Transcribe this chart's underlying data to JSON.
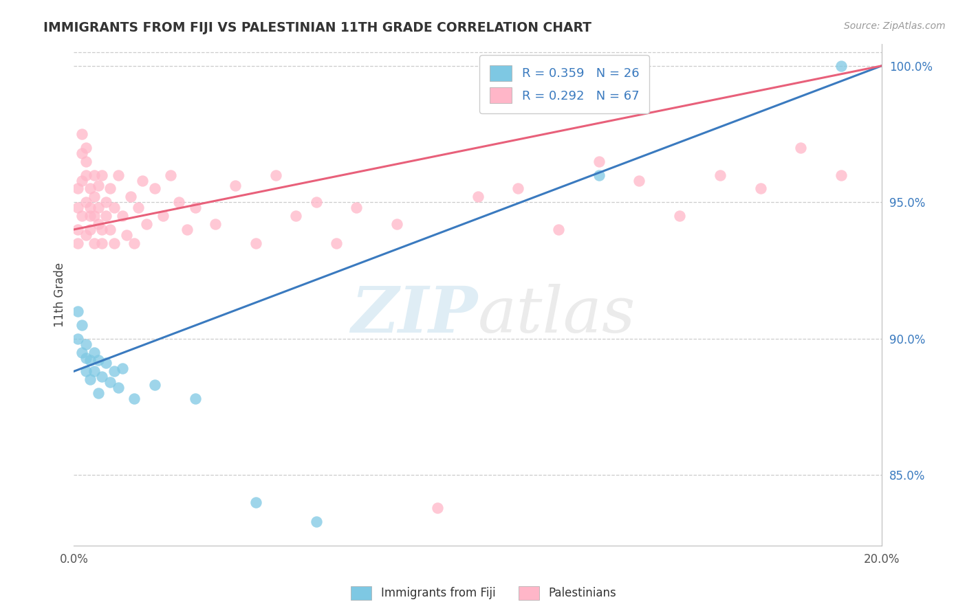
{
  "title": "IMMIGRANTS FROM FIJI VS PALESTINIAN 11TH GRADE CORRELATION CHART",
  "source": "Source: ZipAtlas.com",
  "ylabel": "11th Grade",
  "legend_label1": "Immigrants from Fiji",
  "legend_label2": "Palestinians",
  "r1": 0.359,
  "n1": 26,
  "r2": 0.292,
  "n2": 67,
  "color1": "#7ec8e3",
  "color2": "#ffb6c8",
  "line_color1": "#3a7abf",
  "line_color2": "#e8607a",
  "xmin": 0.0,
  "xmax": 0.2,
  "ymin": 0.824,
  "ymax": 1.008,
  "yticks_right": [
    0.85,
    0.9,
    0.95,
    1.0
  ],
  "ytick_labels_right": [
    "85.0%",
    "90.0%",
    "95.0%",
    "100.0%"
  ],
  "xticks": [
    0.0,
    0.05,
    0.1,
    0.15,
    0.2
  ],
  "xtick_labels": [
    "0.0%",
    "",
    "",
    "",
    "20.0%"
  ],
  "watermark_zip": "ZIP",
  "watermark_atlas": "atlas",
  "background_color": "#ffffff",
  "fiji_x": [
    0.001,
    0.001,
    0.002,
    0.002,
    0.003,
    0.003,
    0.003,
    0.004,
    0.004,
    0.005,
    0.005,
    0.006,
    0.006,
    0.007,
    0.008,
    0.009,
    0.01,
    0.011,
    0.012,
    0.015,
    0.02,
    0.03,
    0.045,
    0.06,
    0.13,
    0.19
  ],
  "fiji_y": [
    0.91,
    0.9,
    0.895,
    0.905,
    0.893,
    0.898,
    0.888,
    0.892,
    0.885,
    0.895,
    0.888,
    0.88,
    0.892,
    0.886,
    0.891,
    0.884,
    0.888,
    0.882,
    0.889,
    0.878,
    0.883,
    0.878,
    0.84,
    0.833,
    0.96,
    1.0
  ],
  "pal_x": [
    0.001,
    0.001,
    0.001,
    0.001,
    0.002,
    0.002,
    0.002,
    0.002,
    0.003,
    0.003,
    0.003,
    0.003,
    0.003,
    0.004,
    0.004,
    0.004,
    0.004,
    0.005,
    0.005,
    0.005,
    0.005,
    0.006,
    0.006,
    0.006,
    0.007,
    0.007,
    0.007,
    0.008,
    0.008,
    0.009,
    0.009,
    0.01,
    0.01,
    0.011,
    0.012,
    0.013,
    0.014,
    0.015,
    0.016,
    0.017,
    0.018,
    0.02,
    0.022,
    0.024,
    0.026,
    0.028,
    0.03,
    0.035,
    0.04,
    0.045,
    0.05,
    0.055,
    0.06,
    0.065,
    0.07,
    0.08,
    0.09,
    0.1,
    0.11,
    0.12,
    0.13,
    0.14,
    0.15,
    0.16,
    0.17,
    0.18,
    0.19
  ],
  "pal_y": [
    0.94,
    0.948,
    0.935,
    0.955,
    0.945,
    0.958,
    0.968,
    0.975,
    0.95,
    0.96,
    0.965,
    0.938,
    0.97,
    0.955,
    0.945,
    0.94,
    0.948,
    0.952,
    0.96,
    0.935,
    0.945,
    0.942,
    0.956,
    0.948,
    0.94,
    0.96,
    0.935,
    0.95,
    0.945,
    0.94,
    0.955,
    0.948,
    0.935,
    0.96,
    0.945,
    0.938,
    0.952,
    0.935,
    0.948,
    0.958,
    0.942,
    0.955,
    0.945,
    0.96,
    0.95,
    0.94,
    0.948,
    0.942,
    0.956,
    0.935,
    0.96,
    0.945,
    0.95,
    0.935,
    0.948,
    0.942,
    0.838,
    0.952,
    0.955,
    0.94,
    0.965,
    0.958,
    0.945,
    0.96,
    0.955,
    0.97,
    0.96
  ],
  "blue_line_x0": 0.0,
  "blue_line_y0": 0.888,
  "blue_line_x1": 0.2,
  "blue_line_y1": 1.0,
  "pink_line_x0": 0.0,
  "pink_line_y0": 0.94,
  "pink_line_x1": 0.2,
  "pink_line_y1": 1.0
}
